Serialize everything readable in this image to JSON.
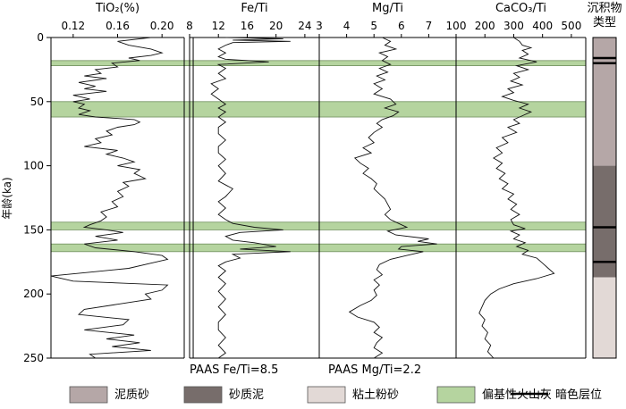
{
  "chart_data": {
    "type": "line",
    "y_axis": {
      "label": "年龄(ka)",
      "range": [
        0,
        250
      ],
      "ticks": [
        0,
        50,
        100,
        150,
        200,
        250
      ]
    },
    "panels": [
      {
        "key": "tio2",
        "title": "TiO₂(%)",
        "range": [
          0.1,
          0.22
        ],
        "ticks": [
          0.12,
          0.16,
          0.2
        ],
        "tick_labels": [
          "0.12",
          "0.16",
          "0.20"
        ],
        "series": [
          [
            0.19,
            0
          ],
          [
            0.16,
            3
          ],
          [
            0.17,
            6
          ],
          [
            0.19,
            9
          ],
          [
            0.2,
            12
          ],
          [
            0.19,
            14
          ],
          [
            0.17,
            16
          ],
          [
            0.18,
            18
          ],
          [
            0.155,
            20
          ],
          [
            0.16,
            23
          ],
          [
            0.14,
            25
          ],
          [
            0.145,
            28
          ],
          [
            0.13,
            30
          ],
          [
            0.15,
            32
          ],
          [
            0.125,
            35
          ],
          [
            0.14,
            38
          ],
          [
            0.13,
            40
          ],
          [
            0.15,
            42
          ],
          [
            0.12,
            45
          ],
          [
            0.135,
            48
          ],
          [
            0.12,
            50
          ],
          [
            0.13,
            52
          ],
          [
            0.125,
            55
          ],
          [
            0.135,
            57
          ],
          [
            0.125,
            60
          ],
          [
            0.14,
            62
          ],
          [
            0.175,
            64
          ],
          [
            0.18,
            66
          ],
          [
            0.175,
            68
          ],
          [
            0.16,
            70
          ],
          [
            0.15,
            73
          ],
          [
            0.155,
            76
          ],
          [
            0.14,
            79
          ],
          [
            0.145,
            82
          ],
          [
            0.13,
            85
          ],
          [
            0.16,
            88
          ],
          [
            0.15,
            91
          ],
          [
            0.165,
            94
          ],
          [
            0.175,
            97
          ],
          [
            0.16,
            100
          ],
          [
            0.18,
            103
          ],
          [
            0.175,
            106
          ],
          [
            0.185,
            110
          ],
          [
            0.165,
            113
          ],
          [
            0.17,
            116
          ],
          [
            0.16,
            120
          ],
          [
            0.165,
            124
          ],
          [
            0.155,
            128
          ],
          [
            0.16,
            132
          ],
          [
            0.145,
            136
          ],
          [
            0.15,
            140
          ],
          [
            0.145,
            143
          ],
          [
            0.135,
            146
          ],
          [
            0.13,
            148
          ],
          [
            0.15,
            150
          ],
          [
            0.165,
            152
          ],
          [
            0.14,
            155
          ],
          [
            0.16,
            158
          ],
          [
            0.13,
            161
          ],
          [
            0.14,
            164
          ],
          [
            0.175,
            167
          ],
          [
            0.2,
            170
          ],
          [
            0.205,
            173
          ],
          [
            0.19,
            176
          ],
          [
            0.17,
            180
          ],
          [
            0.135,
            183
          ],
          [
            0.1,
            186
          ],
          [
            0.12,
            190
          ],
          [
            0.205,
            193
          ],
          [
            0.2,
            197
          ],
          [
            0.185,
            200
          ],
          [
            0.19,
            204
          ],
          [
            0.16,
            208
          ],
          [
            0.13,
            212
          ],
          [
            0.125,
            216
          ],
          [
            0.17,
            220
          ],
          [
            0.165,
            224
          ],
          [
            0.13,
            228
          ],
          [
            0.175,
            232
          ],
          [
            0.15,
            235
          ],
          [
            0.18,
            238
          ],
          [
            0.155,
            241
          ],
          [
            0.19,
            244
          ],
          [
            0.135,
            247
          ],
          [
            0.14,
            250
          ]
        ]
      },
      {
        "key": "feti",
        "title": "Fe/Ti",
        "range": [
          8,
          26
        ],
        "ticks": [
          8,
          12,
          16,
          20,
          24
        ],
        "tick_labels": [
          "8",
          "12",
          "16",
          "20",
          "24"
        ],
        "ref_value": 8.5,
        "ref_label": "PAAS  Fe/Ti=8.5",
        "series": [
          [
            13,
            0
          ],
          [
            21,
            1
          ],
          [
            14,
            2
          ],
          [
            22,
            3
          ],
          [
            14,
            4
          ],
          [
            13,
            6
          ],
          [
            12,
            9
          ],
          [
            13,
            12
          ],
          [
            12,
            15
          ],
          [
            13,
            17
          ],
          [
            19,
            19
          ],
          [
            12,
            21
          ],
          [
            13,
            24
          ],
          [
            12,
            28
          ],
          [
            13,
            32
          ],
          [
            11,
            36
          ],
          [
            12,
            40
          ],
          [
            11,
            44
          ],
          [
            12,
            48
          ],
          [
            13,
            52
          ],
          [
            12,
            55
          ],
          [
            13,
            58
          ],
          [
            12,
            62
          ],
          [
            13,
            66
          ],
          [
            12,
            70
          ],
          [
            12,
            75
          ],
          [
            13,
            80
          ],
          [
            12,
            85
          ],
          [
            12,
            90
          ],
          [
            13,
            95
          ],
          [
            12,
            100
          ],
          [
            13,
            106
          ],
          [
            12,
            112
          ],
          [
            14,
            118
          ],
          [
            13,
            124
          ],
          [
            12,
            128
          ],
          [
            13,
            133
          ],
          [
            12,
            138
          ],
          [
            13,
            142
          ],
          [
            14,
            145
          ],
          [
            17,
            148
          ],
          [
            21,
            150
          ],
          [
            15,
            152
          ],
          [
            13,
            155
          ],
          [
            14,
            158
          ],
          [
            17,
            160
          ],
          [
            20,
            163
          ],
          [
            15,
            165
          ],
          [
            22,
            167
          ],
          [
            14,
            169
          ],
          [
            15,
            172
          ],
          [
            13,
            175
          ],
          [
            12,
            178
          ],
          [
            13,
            182
          ],
          [
            12,
            187
          ],
          [
            13,
            192
          ],
          [
            12,
            198
          ],
          [
            13,
            204
          ],
          [
            12,
            210
          ],
          [
            13,
            216
          ],
          [
            12,
            222
          ],
          [
            12,
            228
          ],
          [
            13,
            234
          ],
          [
            12,
            240
          ],
          [
            13,
            246
          ],
          [
            12,
            250
          ]
        ]
      },
      {
        "key": "mgti",
        "title": "Mg/Ti",
        "range": [
          3,
          8
        ],
        "ticks": [
          3,
          4,
          5,
          6,
          7
        ],
        "tick_labels": [
          "3",
          "4",
          "5",
          "6",
          "7"
        ],
        "ref_value": 2.2,
        "ref_label": "PAAS  Mg/Ti=2.2",
        "series": [
          [
            5.3,
            0
          ],
          [
            5.6,
            3
          ],
          [
            5.4,
            6
          ],
          [
            5.8,
            9
          ],
          [
            5.2,
            12
          ],
          [
            5.5,
            15
          ],
          [
            5.3,
            18
          ],
          [
            5.6,
            21
          ],
          [
            5.2,
            24
          ],
          [
            5.5,
            27
          ],
          [
            5.1,
            30
          ],
          [
            5.4,
            33
          ],
          [
            5.0,
            36
          ],
          [
            5.3,
            40
          ],
          [
            5.0,
            44
          ],
          [
            5.6,
            48
          ],
          [
            5.8,
            52
          ],
          [
            5.4,
            55
          ],
          [
            5.9,
            58
          ],
          [
            5.7,
            61
          ],
          [
            5.3,
            64
          ],
          [
            5.1,
            67
          ],
          [
            5.3,
            70
          ],
          [
            5.0,
            74
          ],
          [
            4.8,
            78
          ],
          [
            5.0,
            82
          ],
          [
            4.6,
            86
          ],
          [
            4.9,
            90
          ],
          [
            4.3,
            94
          ],
          [
            4.5,
            98
          ],
          [
            4.8,
            102
          ],
          [
            4.6,
            106
          ],
          [
            4.9,
            110
          ],
          [
            5.1,
            114
          ],
          [
            5.0,
            118
          ],
          [
            5.2,
            122
          ],
          [
            5.4,
            126
          ],
          [
            5.5,
            130
          ],
          [
            5.6,
            134
          ],
          [
            5.4,
            138
          ],
          [
            5.6,
            142
          ],
          [
            5.9,
            145
          ],
          [
            6.2,
            148
          ],
          [
            5.5,
            151
          ],
          [
            5.8,
            154
          ],
          [
            7.0,
            157
          ],
          [
            6.6,
            159
          ],
          [
            7.3,
            161
          ],
          [
            6.0,
            163
          ],
          [
            5.9,
            165
          ],
          [
            6.8,
            167
          ],
          [
            6.2,
            170
          ],
          [
            5.6,
            173
          ],
          [
            5.2,
            177
          ],
          [
            5.1,
            181
          ],
          [
            5.3,
            185
          ],
          [
            5.0,
            189
          ],
          [
            5.2,
            193
          ],
          [
            5.0,
            197
          ],
          [
            5.1,
            201
          ],
          [
            4.9,
            205
          ],
          [
            4.5,
            209
          ],
          [
            4.1,
            214
          ],
          [
            4.4,
            218
          ],
          [
            5.0,
            222
          ],
          [
            5.2,
            226
          ],
          [
            5.0,
            230
          ],
          [
            5.3,
            234
          ],
          [
            5.1,
            238
          ],
          [
            5.0,
            242
          ],
          [
            5.3,
            246
          ],
          [
            5.0,
            250
          ]
        ]
      },
      {
        "key": "caco3ti",
        "title": "CaCO₃/Ti",
        "range": [
          100,
          550
        ],
        "ticks": [
          100,
          200,
          300,
          400,
          500
        ],
        "tick_labels": [
          "100",
          "200",
          "300",
          "400",
          "500"
        ],
        "series": [
          [
            300,
            0
          ],
          [
            320,
            3
          ],
          [
            330,
            6
          ],
          [
            360,
            8
          ],
          [
            330,
            10
          ],
          [
            350,
            13
          ],
          [
            320,
            16
          ],
          [
            380,
            19
          ],
          [
            310,
            22
          ],
          [
            350,
            25
          ],
          [
            300,
            28
          ],
          [
            320,
            31
          ],
          [
            290,
            34
          ],
          [
            330,
            37
          ],
          [
            280,
            40
          ],
          [
            300,
            43
          ],
          [
            260,
            46
          ],
          [
            300,
            49
          ],
          [
            350,
            52
          ],
          [
            320,
            55
          ],
          [
            360,
            58
          ],
          [
            330,
            61
          ],
          [
            300,
            64
          ],
          [
            320,
            67
          ],
          [
            280,
            70
          ],
          [
            310,
            74
          ],
          [
            260,
            78
          ],
          [
            280,
            82
          ],
          [
            240,
            86
          ],
          [
            260,
            90
          ],
          [
            230,
            94
          ],
          [
            260,
            98
          ],
          [
            240,
            102
          ],
          [
            270,
            106
          ],
          [
            250,
            110
          ],
          [
            280,
            114
          ],
          [
            260,
            118
          ],
          [
            300,
            122
          ],
          [
            280,
            126
          ],
          [
            310,
            130
          ],
          [
            290,
            134
          ],
          [
            320,
            138
          ],
          [
            290,
            142
          ],
          [
            300,
            146
          ],
          [
            340,
            149
          ],
          [
            290,
            151
          ],
          [
            320,
            154
          ],
          [
            300,
            157
          ],
          [
            340,
            160
          ],
          [
            310,
            163
          ],
          [
            350,
            166
          ],
          [
            330,
            169
          ],
          [
            380,
            172
          ],
          [
            400,
            176
          ],
          [
            420,
            180
          ],
          [
            440,
            184
          ],
          [
            380,
            188
          ],
          [
            300,
            192
          ],
          [
            250,
            196
          ],
          [
            220,
            200
          ],
          [
            200,
            205
          ],
          [
            190,
            210
          ],
          [
            180,
            215
          ],
          [
            200,
            220
          ],
          [
            190,
            225
          ],
          [
            210,
            230
          ],
          [
            200,
            235
          ],
          [
            220,
            240
          ],
          [
            210,
            245
          ],
          [
            230,
            250
          ]
        ]
      }
    ],
    "ash_bands_ka": [
      [
        18,
        22
      ],
      [
        50,
        62
      ],
      [
        144,
        150
      ],
      [
        161,
        167
      ]
    ],
    "strat_column": {
      "title_line1": "沉积物",
      "title_line2": "类型",
      "units": [
        {
          "from": 0,
          "to": 100,
          "type": "muddy_sand"
        },
        {
          "from": 100,
          "to": 187,
          "type": "sandy_mud"
        },
        {
          "from": 187,
          "to": 250,
          "type": "clayey_silt"
        }
      ],
      "dark_layers_ka": [
        16,
        20,
        148,
        175
      ]
    },
    "legend": [
      {
        "key": "muddy_sand",
        "label": "泥质砂",
        "color": "#b5a7a7"
      },
      {
        "key": "sandy_mud",
        "label": "砂质泥",
        "color": "#776d6b"
      },
      {
        "key": "clayey_silt",
        "label": "粘土粉砂",
        "color": "#e2d9d6"
      },
      {
        "key": "ash",
        "label": "偏基性火山灰",
        "color": "#b5d49f"
      },
      {
        "key": "dark",
        "label": "暗色层位",
        "color": "#000000"
      }
    ]
  }
}
